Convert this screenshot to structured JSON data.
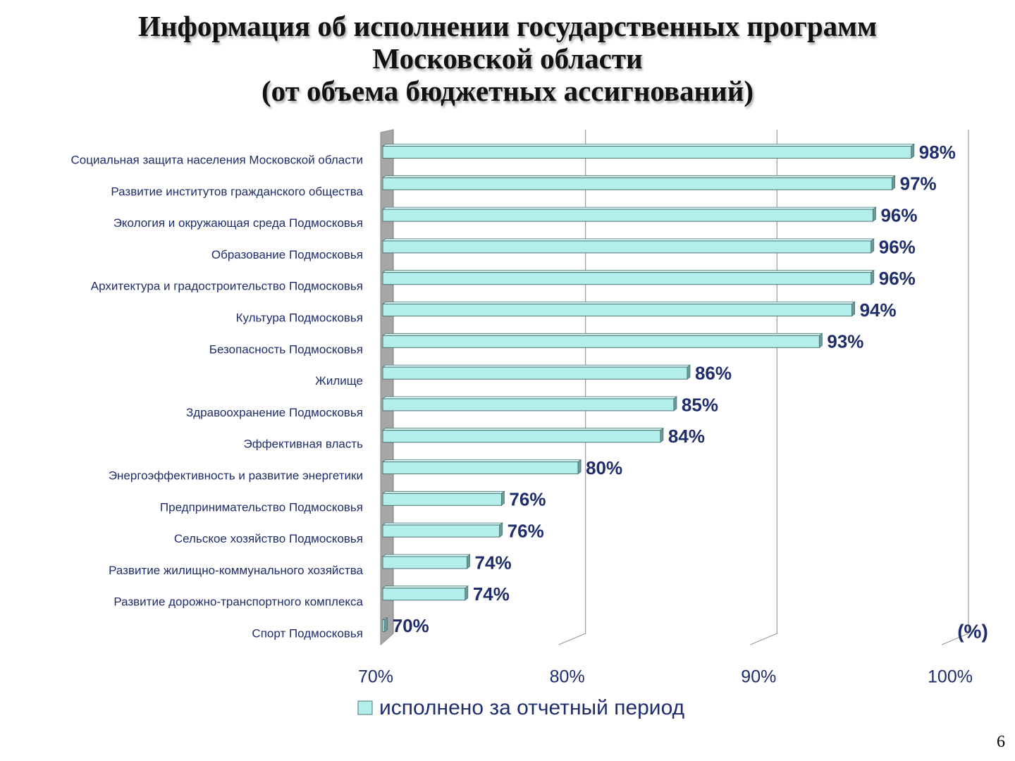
{
  "slide": {
    "title_lines": [
      "Информация об исполнении государственных программ",
      "Московской области",
      "(от объема бюджетных ассигнований)"
    ],
    "page_number": "6"
  },
  "chart_data": {
    "type": "bar",
    "orientation": "horizontal",
    "title": "Информация об исполнении государственных программ Московской области (от объема бюджетных ассигнований)",
    "categories": [
      "Социальная защита населения Московской области",
      "Развитие институтов гражданского общества",
      "Экология и окружающая среда Подмосковья",
      "Образование Подмосковья",
      "Архитектура и градостроительство Подмосковья",
      "Культура Подмосковья",
      "Безопасность Подмосковья",
      "Жилище",
      "Здравоохранение Подмосковья",
      "Эффективная власть",
      "Энергоэффективность и развитие энергетики",
      "Предпринимательство Подмосковья",
      "Сельское хозяйство Подмосковья",
      "Развитие жилищно-коммунального хозяйства",
      "Развитие дорожно-транспортного комплекса",
      "Спорт Подмосковья"
    ],
    "series": [
      {
        "name": "исполнено за отчетный период",
        "values": [
          97.6,
          96.6,
          95.6,
          95.5,
          95.5,
          94.5,
          92.8,
          85.9,
          85.2,
          84.5,
          80.2,
          76.2,
          76.1,
          74.4,
          74.3,
          70.1
        ],
        "data_labels": [
          "98%",
          "97%",
          "96%",
          "96%",
          "96%",
          "94%",
          "93%",
          "86%",
          "85%",
          "84%",
          "80%",
          "76%",
          "76%",
          "74%",
          "74%",
          "70%"
        ],
        "color": "#b3eeea"
      }
    ],
    "xlim": [
      70,
      100
    ],
    "x_ticks": [
      70,
      80,
      90,
      100
    ],
    "x_tick_labels": [
      "70%",
      "80%",
      "90%",
      "100%"
    ],
    "axis_unit_label": "(%)",
    "legend": {
      "position": "bottom",
      "entries": [
        "исполнено за отчетный период"
      ]
    },
    "grid": true,
    "colors": {
      "bar_fill": "#b3eeea",
      "bar_stroke": "#4a7676",
      "bar_side": "#6c9a98",
      "data_label": "#1f2d6b",
      "tick_label": "#1f2d6b",
      "category_label": "#1f2d6b",
      "wall": "#a6a6a6",
      "grid": "#999999"
    }
  }
}
